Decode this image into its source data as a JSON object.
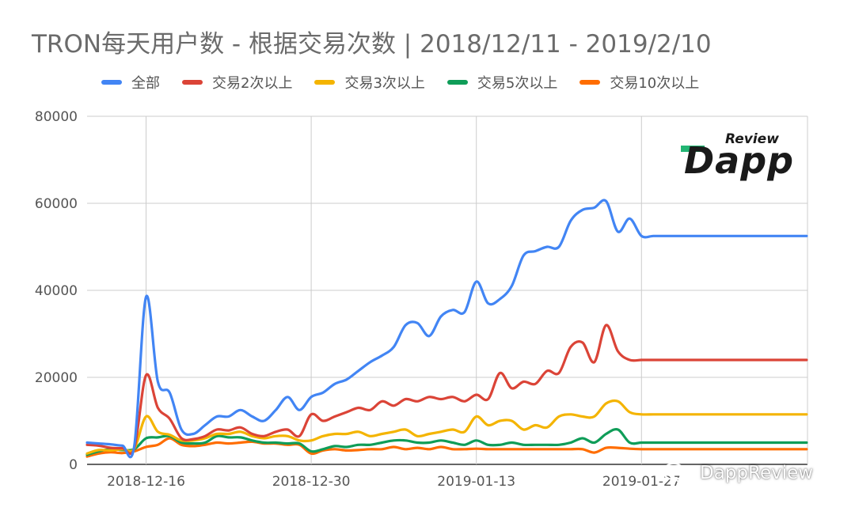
{
  "title": "TRON每天用户数 - 根据交易次数 | 2018/12/11 - 2019/2/10",
  "watermark": "DappReview",
  "logo": {
    "top": "Review",
    "main": "Dapp"
  },
  "colors": {
    "grid": "#cccccc",
    "axis": "#333333",
    "tick_text": "#555555"
  },
  "chart_data": {
    "type": "line",
    "title": "TRON每天用户数 - 根据交易次数 | 2018/12/11 - 2019/2/10",
    "x": [
      "2018-12-11",
      "2018-12-12",
      "2018-12-13",
      "2018-12-14",
      "2018-12-15",
      "2018-12-16",
      "2018-12-17",
      "2018-12-18",
      "2018-12-19",
      "2018-12-20",
      "2018-12-21",
      "2018-12-22",
      "2018-12-23",
      "2018-12-24",
      "2018-12-25",
      "2018-12-26",
      "2018-12-27",
      "2018-12-28",
      "2018-12-29",
      "2018-12-30",
      "2018-12-31",
      "2019-01-01",
      "2019-01-02",
      "2019-01-03",
      "2019-01-04",
      "2019-01-05",
      "2019-01-06",
      "2019-01-07",
      "2019-01-08",
      "2019-01-09",
      "2019-01-10",
      "2019-01-11",
      "2019-01-12",
      "2019-01-13",
      "2019-01-14",
      "2019-01-15",
      "2019-01-16",
      "2019-01-17",
      "2019-01-18",
      "2019-01-19",
      "2019-01-20",
      "2019-01-21",
      "2019-01-22",
      "2019-01-23",
      "2019-01-24",
      "2019-01-25",
      "2019-01-26",
      "2019-01-27",
      "2019-01-28",
      "2019-01-29",
      "2019-01-30",
      "2019-01-31",
      "2019-02-01",
      "2019-02-02",
      "2019-02-03",
      "2019-02-04",
      "2019-02-05",
      "2019-02-06",
      "2019-02-07",
      "2019-02-08",
      "2019-02-09",
      "2019-02-10"
    ],
    "x_ticks": [
      "2018-12-16",
      "2018-12-30",
      "2019-01-13",
      "2019-01-27"
    ],
    "ylim": [
      0,
      80000
    ],
    "y_ticks": [
      "0",
      "20000",
      "40000",
      "60000",
      "80000"
    ],
    "grid": true,
    "legend_position": "top",
    "series": [
      {
        "name": "全部",
        "color": "#4285f4",
        "values": [
          5000,
          4800,
          4600,
          4300,
          4200,
          38500,
          19000,
          16500,
          8000,
          7000,
          9000,
          11000,
          11000,
          12500,
          11000,
          10000,
          12500,
          15500,
          12500,
          15500,
          16500,
          18500,
          19500,
          21500,
          23500,
          25000,
          27000,
          32000,
          32500,
          29500,
          34000,
          35500,
          35000,
          42000,
          37000,
          38000,
          41000,
          48000,
          49000,
          50000,
          50000,
          56000,
          58500,
          59000,
          60500,
          53500,
          56500,
          52500,
          52500,
          52500,
          52500,
          52500,
          52500,
          52500,
          52500,
          52500,
          52500,
          52500,
          52500,
          52500,
          52500,
          52500
        ]
      },
      {
        "name": "交易2次以上",
        "color": "#db4437",
        "values": [
          4500,
          4300,
          3800,
          3700,
          3700,
          20500,
          13000,
          10500,
          6000,
          5800,
          6500,
          8000,
          7800,
          8500,
          7000,
          6500,
          7500,
          8000,
          6500,
          11500,
          10000,
          11000,
          12000,
          13000,
          12500,
          14500,
          13500,
          15000,
          14500,
          15500,
          15000,
          15500,
          14500,
          16000,
          15000,
          21000,
          17500,
          19000,
          18500,
          21500,
          21000,
          27000,
          28000,
          23500,
          32000,
          26000,
          24000,
          24000,
          24000,
          24000,
          24000,
          24000,
          24000,
          24000,
          24000,
          24000,
          24000,
          24000,
          24000,
          24000,
          24000,
          24000
        ]
      },
      {
        "name": "交易3次以上",
        "color": "#f4b400",
        "values": [
          2500,
          3300,
          3200,
          3500,
          3600,
          11000,
          7500,
          6800,
          5500,
          5500,
          6000,
          7000,
          7000,
          7500,
          6500,
          6000,
          6500,
          6500,
          5500,
          5500,
          6500,
          7000,
          7000,
          7500,
          6500,
          7000,
          7500,
          8000,
          6500,
          7000,
          7500,
          8000,
          7500,
          11000,
          9000,
          10000,
          10000,
          8000,
          9000,
          8500,
          11000,
          11500,
          11000,
          11000,
          14000,
          14500,
          12000,
          11500,
          11500,
          11500,
          11500,
          11500,
          11500,
          11500,
          11500,
          11500,
          11500,
          11500,
          11500,
          11500,
          11500,
          11500
        ]
      },
      {
        "name": "交易5次以上",
        "color": "#0f9d58",
        "values": [
          2200,
          3000,
          3500,
          3300,
          3500,
          6000,
          6200,
          6500,
          5000,
          4800,
          5000,
          6500,
          6200,
          6200,
          5500,
          5000,
          5000,
          4800,
          4800,
          3000,
          3500,
          4200,
          4000,
          4500,
          4500,
          5000,
          5500,
          5500,
          5000,
          5000,
          5500,
          5000,
          4500,
          5500,
          4500,
          4500,
          5000,
          4500,
          4500,
          4500,
          4500,
          5000,
          6000,
          5000,
          7000,
          8000,
          5000,
          5000,
          5000,
          5000,
          5000,
          5000,
          5000,
          5000,
          5000,
          5000,
          5000,
          5000,
          5000,
          5000,
          5000,
          5000
        ]
      },
      {
        "name": "交易10次以上",
        "color": "#ff6d00",
        "values": [
          1800,
          2500,
          2800,
          2600,
          3000,
          4000,
          4500,
          6000,
          4500,
          4200,
          4500,
          5000,
          4800,
          5000,
          5200,
          4800,
          4800,
          4500,
          4500,
          2500,
          3200,
          3500,
          3200,
          3300,
          3500,
          3500,
          4000,
          3500,
          3800,
          3500,
          4000,
          3500,
          3500,
          3600,
          3500,
          3500,
          3500,
          3500,
          3500,
          3500,
          3500,
          3500,
          3500,
          2700,
          3800,
          3800,
          3600,
          3500,
          3500,
          3500,
          3500,
          3500,
          3500,
          3500,
          3500,
          3500,
          3500,
          3500,
          3500,
          3500,
          3500,
          3500
        ]
      }
    ]
  }
}
